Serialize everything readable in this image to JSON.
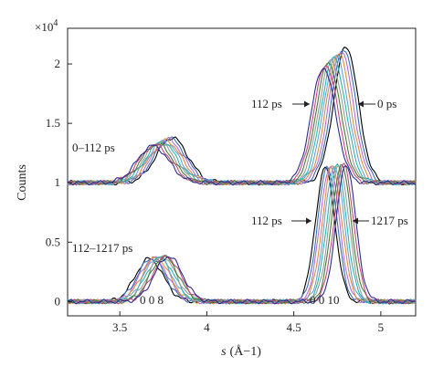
{
  "chart_data": {
    "type": "line",
    "title": "",
    "xlabel_symbol": "s",
    "xlabel_unit": "(Å−1)",
    "ylabel": "Counts",
    "y_multiplier": "×10",
    "y_multiplier_exp": "4",
    "xlim": [
      3.2,
      5.2
    ],
    "ylim": [
      -0.12,
      2.3
    ],
    "grid": false,
    "x_ticks": [
      3.5,
      4,
      4.5,
      5
    ],
    "x_tick_labels": [
      "3.5",
      "4",
      "4.5",
      "5"
    ],
    "y_ticks": [
      0,
      0.5,
      1,
      1.5,
      2
    ],
    "y_tick_labels": [
      "0",
      "0.5",
      "1",
      "1.5",
      "2"
    ],
    "colors": [
      "#000000",
      "#3a6fb5",
      "#b36fcf",
      "#d98c3a",
      "#6aa0d8",
      "#2bb5a8",
      "#9a9a9a",
      "#4a7a3a",
      "#c24d7b",
      "#2c2c8c"
    ],
    "annotations": {
      "upper_early": "112 ps",
      "upper_late": "0 ps",
      "upper_range": "0–112 ps",
      "lower_early": "112 ps",
      "lower_late": "1217 ps",
      "lower_range": "112–1217 ps",
      "peak_008": "0 0 8",
      "peak_0010": "0 0 10"
    },
    "panels": [
      {
        "name": "0–112 ps",
        "baseline": 1.0,
        "peaks": [
          {
            "label": "0 0 8",
            "center_start": 3.8,
            "center_end": 3.69,
            "height_start": 0.38,
            "height_end": 0.31,
            "width": 0.09
          },
          {
            "label": "0 0 10",
            "center_start": 4.8,
            "center_end": 4.67,
            "height_start": 1.15,
            "height_end": 0.97,
            "width": 0.07
          }
        ],
        "series": [
          {
            "name": "0 ps",
            "centers": [
              3.8,
              4.8
            ],
            "heights": [
              0.38,
              1.15
            ]
          },
          {
            "name": "112 ps",
            "centers": [
              3.69,
              4.67
            ],
            "heights": [
              0.31,
              0.97
            ]
          }
        ]
      },
      {
        "name": "112–1217 ps",
        "baseline": 0.0,
        "peaks": [
          {
            "label": "0 0 8",
            "center_start": 3.67,
            "center_end": 3.78,
            "height_start": 0.36,
            "height_end": 0.38,
            "width": 0.08
          },
          {
            "label": "0 0 10",
            "center_start": 4.68,
            "center_end": 4.8,
            "height_start": 1.13,
            "height_end": 1.16,
            "width": 0.055
          }
        ],
        "series": [
          {
            "name": "112 ps",
            "centers": [
              3.67,
              4.68
            ],
            "heights": [
              0.36,
              1.13
            ]
          },
          {
            "name": "1217 ps",
            "centers": [
              3.78,
              4.8
            ],
            "heights": [
              0.38,
              1.16
            ]
          }
        ]
      }
    ],
    "curves_per_panel": 10
  }
}
